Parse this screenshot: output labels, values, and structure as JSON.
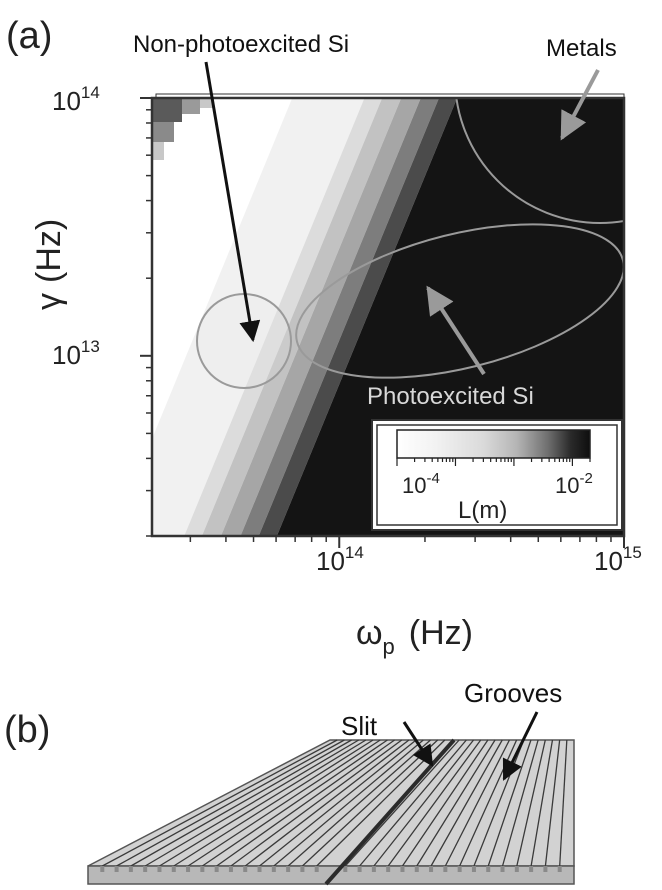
{
  "panel_a_label": "(a)",
  "panel_b_label": "(b)",
  "chart_data": {
    "type": "heatmap",
    "title": "",
    "xlabel": {
      "symbol": "ω",
      "subscript": "p",
      "unit": "(Hz)"
    },
    "ylabel": {
      "symbol": "γ",
      "unit": "(Hz)"
    },
    "x_scale": "log",
    "y_scale": "log",
    "xlim": [
      22000000000000.0,
      1000000000000000.0
    ],
    "ylim": [
      2000000000000.0,
      100000000000000.0
    ],
    "x_ticks": [
      {
        "value": 100000000000000.0,
        "mantissa": "10",
        "exponent": "14"
      },
      {
        "value": 1000000000000000.0,
        "mantissa": "10",
        "exponent": "15"
      }
    ],
    "y_ticks": [
      {
        "value": 10000000000000.0,
        "mantissa": "10",
        "exponent": "13"
      },
      {
        "value": 100000000000000.0,
        "mantissa": "10",
        "exponent": "14"
      }
    ],
    "colorbar": {
      "label": "L(m)",
      "scale": "log",
      "range": [
        1e-05,
        0.02
      ],
      "ticks": [
        {
          "value": 0.0001,
          "mantissa": "10",
          "exponent": "-4"
        },
        {
          "value": 0.01,
          "mantissa": "10",
          "exponent": "-2"
        }
      ],
      "colormap": "white-to-black"
    },
    "contour_boundaries_at_gamma_1e13": [
      29000000000000.0,
      52000000000000.0,
      60000000000000.0,
      70000000000000.0,
      82000000000000.0,
      95000000000000.0,
      110000000000000.0
    ],
    "contour_slope_in_log_log": 2.2,
    "regions": [
      {
        "label": "Non-photoexcited Si",
        "center": [
          44000000000000.0,
          11000000000000.0
        ],
        "shape": "circle"
      },
      {
        "label": "Photoexcited Si",
        "center": [
          260000000000000.0,
          22000000000000.0
        ],
        "shape": "ellipse"
      },
      {
        "label": "Metals",
        "center": [
          750000000000000.0,
          80000000000000.0
        ],
        "shape": "circle"
      }
    ]
  },
  "panel_b": {
    "annotations": [
      {
        "label": "Slit"
      },
      {
        "label": "Grooves"
      }
    ],
    "colors": {
      "top": "#d2d2d2",
      "front": "#b8b8b8",
      "groove": "#3a3a3a",
      "outline": "#555555"
    }
  },
  "colors": {
    "region_outline": "#9a9a9a",
    "arrow_dark": "#111111",
    "arrow_light": "#9a9a9a",
    "frame": "#333333"
  }
}
